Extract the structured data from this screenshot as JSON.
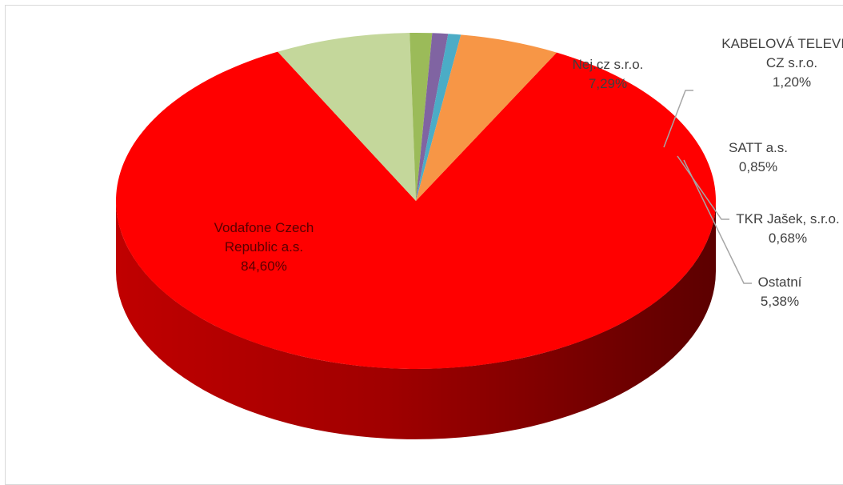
{
  "chart_data": {
    "type": "pie",
    "title": "",
    "series": [
      {
        "values": [
          84.6,
          7.29,
          1.2,
          0.85,
          0.68,
          5.38
        ],
        "labels": [
          "Vodafone Czech Republic a.s.",
          "Nej.cz s.r.o.",
          "KABELOVÁ TELEVIZE CZ s.r.o.",
          "SATT a.s.",
          "TKR Jašek, s.r.o.",
          "Ostatní"
        ]
      }
    ],
    "slices": [
      {
        "label_lines": [
          "Vodafone Czech",
          "Republic a.s."
        ],
        "pct_text": "84,60%",
        "value": 84.6,
        "color": "#ff0000"
      },
      {
        "label_lines": [
          "Nej.cz s.r.o."
        ],
        "pct_text": "7,29%",
        "value": 7.29,
        "color": "#c4d79b"
      },
      {
        "label_lines": [
          "KABELOVÁ TELEVIZE",
          "CZ s.r.o."
        ],
        "pct_text": "1,20%",
        "value": 1.2,
        "color": "#9bbb59"
      },
      {
        "label_lines": [
          "SATT a.s."
        ],
        "pct_text": "0,85%",
        "value": 0.85,
        "color": "#8064a2"
      },
      {
        "label_lines": [
          "TKR Jašek, s.r.o."
        ],
        "pct_text": "0,68%",
        "value": 0.68,
        "color": "#4bacc6"
      },
      {
        "label_lines": [
          "Ostatní"
        ],
        "pct_text": "5,38%",
        "value": 5.38,
        "color": "#f79646"
      }
    ],
    "style": "3d-pie",
    "legend": "none",
    "label_color": "#404040",
    "leader_line_color": "#a6a6a6"
  }
}
